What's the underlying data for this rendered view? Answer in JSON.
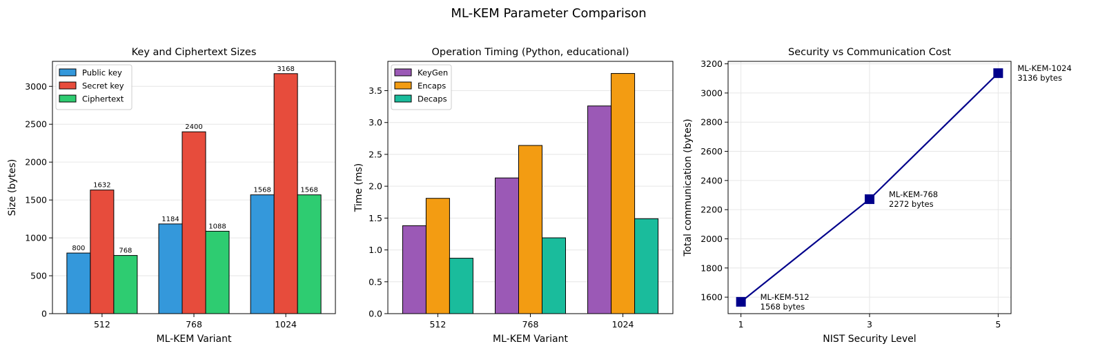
{
  "figure": {
    "suptitle": "ML-KEM Parameter Comparison"
  },
  "chart_data": [
    {
      "type": "bar",
      "title": "Key and Ciphertext Sizes",
      "xlabel": "ML-KEM Variant",
      "ylabel": "Size (bytes)",
      "categories": [
        "512",
        "768",
        "1024"
      ],
      "ylim": [
        0,
        3330
      ],
      "yticks": [
        0,
        500,
        1000,
        1500,
        2000,
        2500,
        3000
      ],
      "grid": "y",
      "legend_position": "upper-left",
      "data_labels": true,
      "series": [
        {
          "name": "Public key",
          "color": "#3498db",
          "values": [
            800,
            1184,
            1568
          ]
        },
        {
          "name": "Secret key",
          "color": "#e74c3c",
          "values": [
            1632,
            2400,
            3168
          ]
        },
        {
          "name": "Ciphertext",
          "color": "#2ecc71",
          "values": [
            768,
            1088,
            1568
          ]
        }
      ]
    },
    {
      "type": "bar",
      "title": "Operation Timing (Python, educational)",
      "xlabel": "ML-KEM Variant",
      "ylabel": "Time (ms)",
      "categories": [
        "512",
        "768",
        "1024"
      ],
      "ylim": [
        0,
        3.96
      ],
      "yticks": [
        0.0,
        0.5,
        1.0,
        1.5,
        2.0,
        2.5,
        3.0,
        3.5
      ],
      "tick_decimals": 1,
      "grid": "y",
      "legend_position": "upper-left",
      "data_labels": false,
      "series": [
        {
          "name": "KeyGen",
          "color": "#9b59b6",
          "values": [
            1.38,
            2.13,
            3.26
          ]
        },
        {
          "name": "Encaps",
          "color": "#f39c12",
          "values": [
            1.81,
            2.64,
            3.77
          ]
        },
        {
          "name": "Decaps",
          "color": "#1abc9c",
          "values": [
            0.87,
            1.19,
            1.49
          ]
        }
      ]
    },
    {
      "type": "line",
      "title": "Security vs Communication Cost",
      "xlabel": "NIST Security Level",
      "ylabel": "Total communication (bytes)",
      "x": [
        1,
        3,
        5
      ],
      "xlim": [
        0.8,
        5.2
      ],
      "xticks": [
        1,
        3,
        5
      ],
      "ylim": [
        1487,
        3217
      ],
      "yticks": [
        1600,
        1800,
        2000,
        2200,
        2400,
        2600,
        2800,
        3000,
        3200
      ],
      "grid": "both",
      "series": [
        {
          "name": "",
          "color": "#00008b",
          "marker": "square",
          "values": [
            1568,
            2272,
            3136
          ]
        }
      ],
      "annotations": [
        {
          "text": [
            "ML-KEM-512",
            "1568 bytes"
          ],
          "x": 1,
          "y": 1568
        },
        {
          "text": [
            "ML-KEM-768",
            "2272 bytes"
          ],
          "x": 3,
          "y": 2272
        },
        {
          "text": [
            "ML-KEM-1024",
            "3136 bytes"
          ],
          "x": 5,
          "y": 3136
        }
      ]
    }
  ]
}
